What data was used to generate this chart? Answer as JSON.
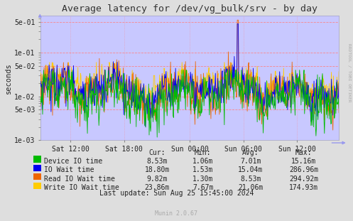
{
  "title": "Average latency for /dev/vg_bulk/srv - by day",
  "ylabel": "seconds",
  "xlabel_ticks": [
    "Sat 12:00",
    "Sat 18:00",
    "Sun 00:00",
    "Sun 06:00",
    "Sun 12:00"
  ],
  "ytick_labels": [
    "1e-03",
    "5e-03",
    "1e-02",
    "5e-02",
    "1e-01",
    "5e-01"
  ],
  "ytick_vals": [
    0.001,
    0.005,
    0.01,
    0.05,
    0.1,
    0.5
  ],
  "ylim": [
    0.001,
    0.7
  ],
  "colors": {
    "device_io": "#00bb00",
    "io_wait": "#0000ee",
    "read_io_wait": "#ee6600",
    "write_io_wait": "#ffcc00"
  },
  "legend": [
    {
      "label": "Device IO time",
      "color": "#00bb00",
      "cur": "8.53m",
      "min": "1.06m",
      "avg": "7.01m",
      "max": "15.16m"
    },
    {
      "label": "IO Wait time",
      "color": "#0000ee",
      "cur": "18.80m",
      "min": "1.53m",
      "avg": "15.04m",
      "max": "286.96m"
    },
    {
      "label": "Read IO Wait time",
      "color": "#ee6600",
      "cur": "9.82m",
      "min": "1.30m",
      "avg": "8.53m",
      "max": "294.92m"
    },
    {
      "label": "Write IO Wait time",
      "color": "#ffcc00",
      "cur": "23.86m",
      "min": "7.67m",
      "avg": "21.06m",
      "max": "174.93m"
    }
  ],
  "last_update": "Last update: Sun Aug 25 15:45:00 2024",
  "rrdtool_label": "RRDTOOL / TOBI OETIKER",
  "munin_label": "Munin 2.0.67",
  "bg_color": "#dedede",
  "plot_bg_color": "#c8c8ff",
  "grid_color": "#ff8080",
  "title_color": "#333333"
}
